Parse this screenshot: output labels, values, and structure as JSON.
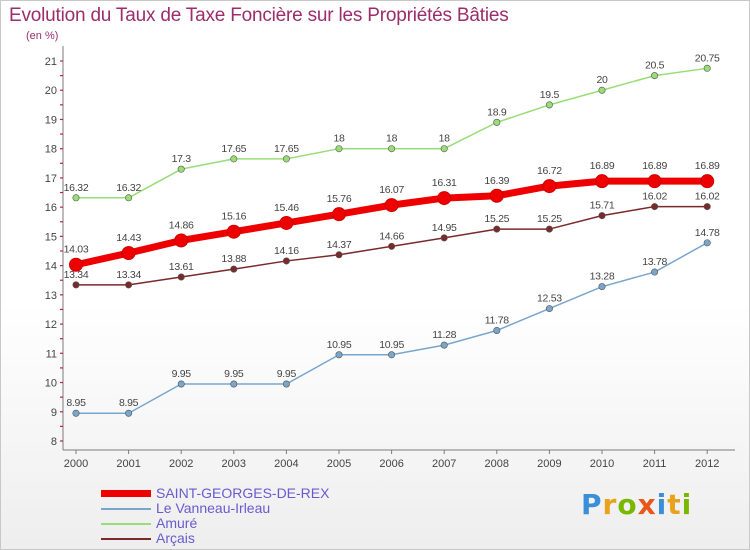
{
  "title": "Evolution du Taux de Taxe Foncière sur les Propriétés Bâties",
  "subtitle": "(en %)",
  "logo": {
    "text": "Proxiti",
    "letters": [
      {
        "ch": "P",
        "color": "#3b8fd9"
      },
      {
        "ch": "r",
        "color": "#e8a21c"
      },
      {
        "ch": "o",
        "color": "#7ab800"
      },
      {
        "ch": "x",
        "color": "#e8561c"
      },
      {
        "ch": "i",
        "color": "#3b8fd9"
      },
      {
        "ch": "t",
        "color": "#e8a21c"
      },
      {
        "ch": "i",
        "color": "#7ab800"
      }
    ]
  },
  "chart_data": {
    "type": "line",
    "title": "Evolution du Taux de Taxe Foncière sur les Propriétés Bâties",
    "ylabel": "(en %)",
    "xlabel": "",
    "ylim": [
      8,
      21
    ],
    "yticks": [
      "8",
      "9",
      "10",
      "11",
      "12",
      "13",
      "14",
      "15",
      "16",
      "17",
      "18",
      "19",
      "20",
      "21"
    ],
    "grid": false,
    "legend_position": "bottom-left",
    "x": [
      "2000",
      "2001",
      "2002",
      "2003",
      "2004",
      "2005",
      "2006",
      "2007",
      "2008",
      "2009",
      "2010",
      "2011",
      "2012"
    ],
    "series": [
      {
        "name": "SAINT-GEORGES-DE-REX",
        "color": "#ee0000",
        "labels": [
          "14.03",
          "14.43",
          "14.86",
          "15.16",
          "15.46",
          "15.76",
          "16.07",
          "16.31",
          "16.39",
          "16.72",
          "16.89",
          "16.89",
          "16.89"
        ],
        "values": [
          14.03,
          14.43,
          14.86,
          15.16,
          15.46,
          15.76,
          16.07,
          16.31,
          16.39,
          16.72,
          16.89,
          16.89,
          16.89
        ]
      },
      {
        "name": "Le Vanneau-Irleau",
        "color": "#7aa6cc",
        "labels": [
          "8.95",
          "8.95",
          "9.95",
          "9.95",
          "9.95",
          "10.95",
          "10.95",
          "11.28",
          "11.78",
          "12.53",
          "13.28",
          "13.78",
          "14.78"
        ],
        "values": [
          8.95,
          8.95,
          9.95,
          9.95,
          9.95,
          10.95,
          10.95,
          11.28,
          11.78,
          12.53,
          13.28,
          13.78,
          14.78
        ]
      },
      {
        "name": "Amuré",
        "color": "#99dd77",
        "labels": [
          "16.32",
          "16.32",
          "17.3",
          "17.65",
          "17.65",
          "18",
          "18",
          "18",
          "18.9",
          "19.5",
          "20",
          "20.5",
          "20.75"
        ],
        "values": [
          16.32,
          16.32,
          17.3,
          17.65,
          17.65,
          18,
          18,
          18,
          18.9,
          19.5,
          20,
          20.5,
          20.75
        ]
      },
      {
        "name": "Arçais",
        "color": "#7a2a2a",
        "labels": [
          "13.34",
          "13.34",
          "13.61",
          "13.88",
          "14.16",
          "14.37",
          "14.66",
          "14.95",
          "15.25",
          "15.25",
          "15.71",
          "16.02",
          "16.02"
        ],
        "values": [
          13.34,
          13.34,
          13.61,
          13.88,
          14.16,
          14.37,
          14.66,
          14.95,
          15.25,
          15.25,
          15.71,
          16.02,
          16.02
        ]
      }
    ]
  }
}
